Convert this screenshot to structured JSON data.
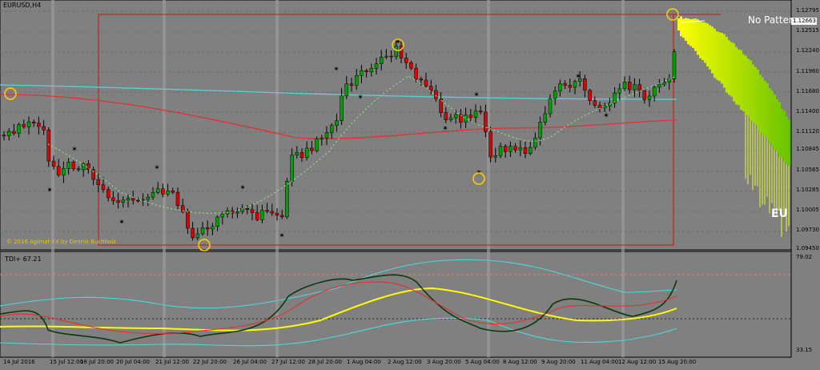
{
  "chart": {
    "symbol": "EURUSD,H4",
    "credit": "© 2016 Agimat-FX by Dennis Buchholz",
    "pattern_text": "No Pattern",
    "currency_tag": "EU",
    "current_price": "1.12663",
    "price_labels": [
      "1.12795",
      "1.12663",
      "1.12515",
      "1.12240",
      "1.11960",
      "1.11680",
      "1.11400",
      "1.11120",
      "1.10845",
      "1.10565",
      "1.10285",
      "1.10005",
      "1.09730",
      "1.09450"
    ],
    "indicator_title": "TDI+ 67.21",
    "indicator_scale": [
      "79.02",
      "33.15"
    ],
    "time_labels": [
      "14 Jul 2016",
      "15 Jul 12:00",
      "18 Jul 20:00",
      "20 Jul 04:00",
      "21 Jul 12:00",
      "22 Jul 20:00",
      "26 Jul 04:00",
      "27 Jul 12:00",
      "28 Jul 20:00",
      "1 Aug 04:00",
      "2 Aug 12:00",
      "3 Aug 20:00",
      "5 Aug 04:00",
      "8 Aug 12:00",
      "9 Aug 20:00",
      "11 Aug 04:00",
      "12 Aug 12:00",
      "15 Aug 20:00"
    ],
    "colors": {
      "background": "#808080",
      "bull": "#00a000",
      "bear": "#e00000",
      "ma_red": "#e03030",
      "ma_cyan": "#4fd8d8",
      "tdi_yellow": "#ffff00",
      "tdi_green": "#0a3a0a",
      "projection": "#ccff00"
    }
  }
}
